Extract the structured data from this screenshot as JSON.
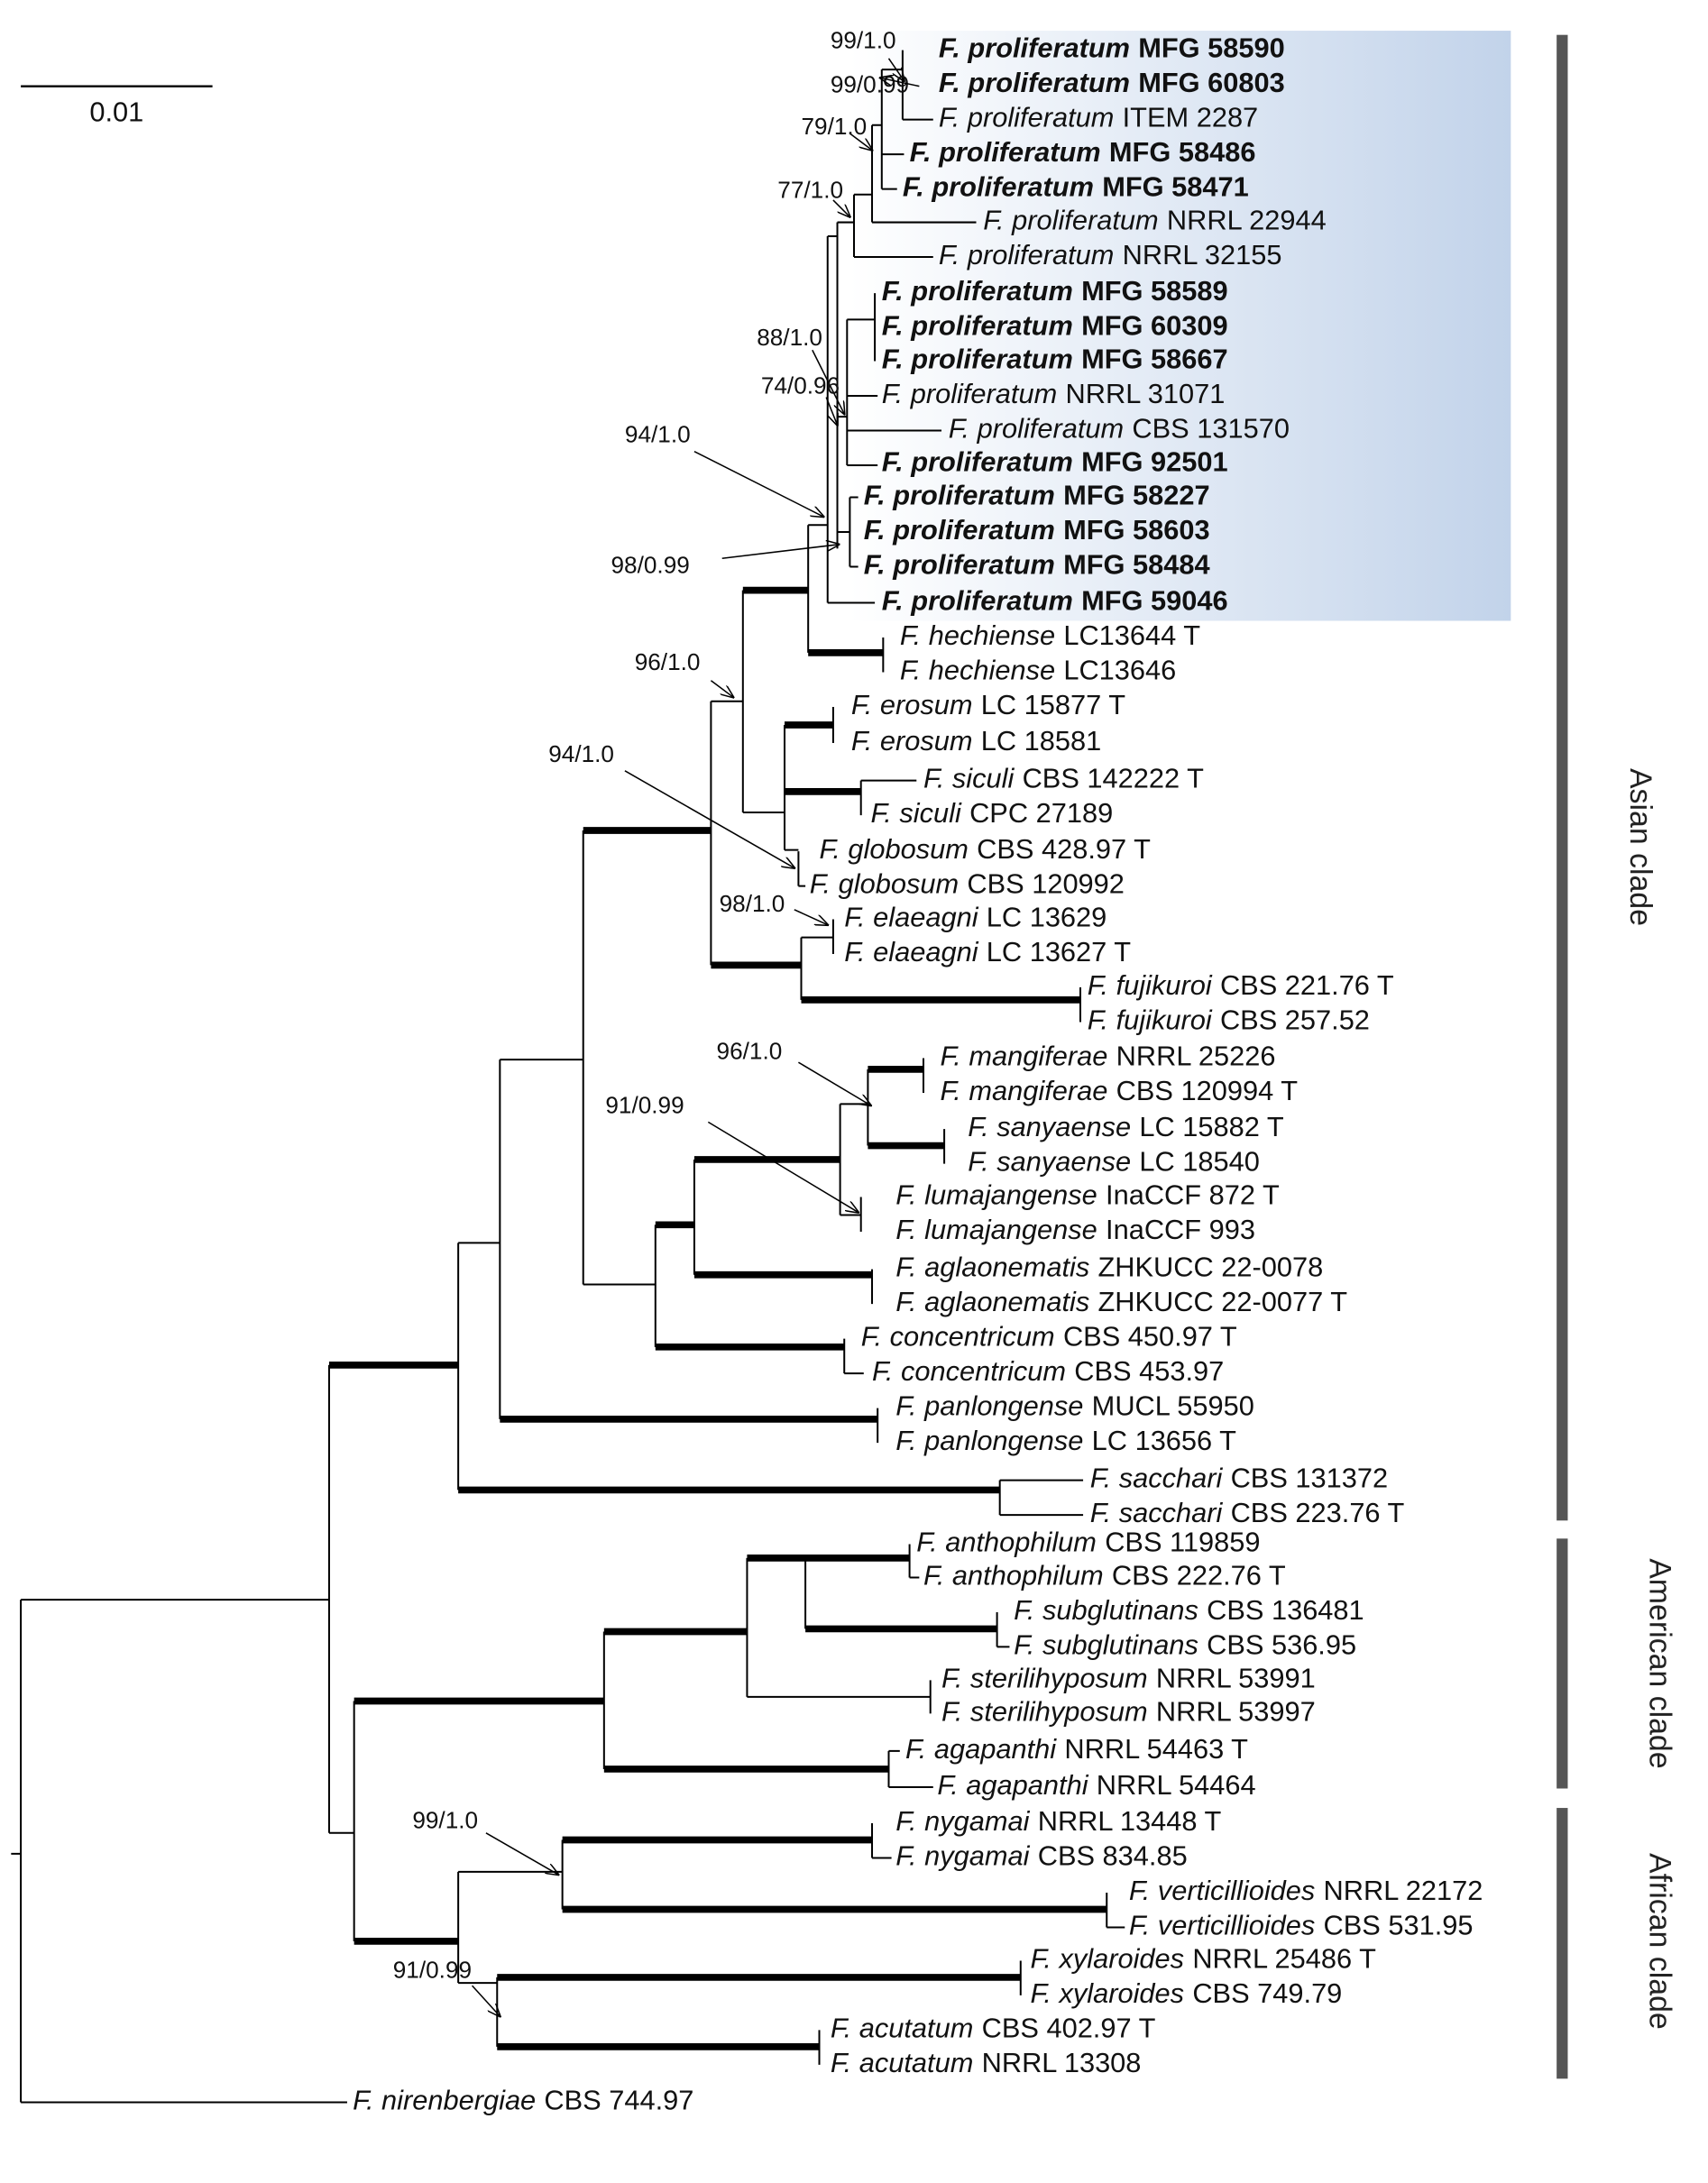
{
  "scale_bar": "0.01",
  "leaves": [
    {
      "species": "F. proliferatum",
      "strain": "MFG 58590",
      "bold": true
    },
    {
      "species": "F. proliferatum",
      "strain": "MFG 60803",
      "bold": true
    },
    {
      "species": "F. proliferatum",
      "strain": "ITEM 2287",
      "bold": false
    },
    {
      "species": "F. proliferatum",
      "strain": "MFG 58486",
      "bold": true
    },
    {
      "species": "F. proliferatum",
      "strain": "MFG 58471",
      "bold": true
    },
    {
      "species": "F. proliferatum",
      "strain": "NRRL 22944",
      "bold": false
    },
    {
      "species": "F. proliferatum",
      "strain": "NRRL 32155",
      "bold": false
    },
    {
      "species": "F. proliferatum",
      "strain": "MFG 58589",
      "bold": true
    },
    {
      "species": "F. proliferatum",
      "strain": "MFG 60309",
      "bold": true
    },
    {
      "species": "F. proliferatum",
      "strain": "MFG 58667",
      "bold": true
    },
    {
      "species": "F. proliferatum",
      "strain": "NRRL 31071",
      "bold": false
    },
    {
      "species": "F. proliferatum",
      "strain": "CBS 131570",
      "bold": false
    },
    {
      "species": "F. proliferatum",
      "strain": "MFG 92501",
      "bold": true
    },
    {
      "species": "F. proliferatum",
      "strain": "MFG 58227",
      "bold": true
    },
    {
      "species": "F. proliferatum",
      "strain": "MFG 58603",
      "bold": true
    },
    {
      "species": "F. proliferatum",
      "strain": "MFG 58484",
      "bold": true
    },
    {
      "species": "F. proliferatum",
      "strain": "MFG 59046",
      "bold": true
    },
    {
      "species": "F. hechiense",
      "strain": "LC13644 T",
      "bold": false
    },
    {
      "species": "F. hechiense",
      "strain": "LC13646",
      "bold": false
    },
    {
      "species": "F. erosum",
      "strain": "LC 15877 T",
      "bold": false
    },
    {
      "species": "F. erosum",
      "strain": "LC 18581",
      "bold": false
    },
    {
      "species": "F. siculi",
      "strain": "CBS 142222 T",
      "bold": false
    },
    {
      "species": "F. siculi",
      "strain": "CPC 27189",
      "bold": false
    },
    {
      "species": "F. globosum",
      "strain": "CBS 428.97 T",
      "bold": false
    },
    {
      "species": "F. globosum",
      "strain": "CBS 120992",
      "bold": false
    },
    {
      "species": "F. elaeagni",
      "strain": "LC 13629",
      "bold": false
    },
    {
      "species": "F. elaeagni",
      "strain": "LC 13627 T",
      "bold": false
    },
    {
      "species": "F. fujikuroi",
      "strain": "CBS 221.76 T",
      "bold": false
    },
    {
      "species": "F. fujikuroi",
      "strain": "CBS 257.52",
      "bold": false
    },
    {
      "species": "F. mangiferae",
      "strain": "NRRL 25226",
      "bold": false
    },
    {
      "species": "F. mangiferae",
      "strain": "CBS 120994 T",
      "bold": false
    },
    {
      "species": "F. sanyaense",
      "strain": "LC 15882 T",
      "bold": false
    },
    {
      "species": "F. sanyaense",
      "strain": "LC 18540",
      "bold": false
    },
    {
      "species": "F. lumajangense",
      "strain": "InaCCF 872 T",
      "bold": false
    },
    {
      "species": "F. lumajangense",
      "strain": "InaCCF 993",
      "bold": false
    },
    {
      "species": "F. aglaonematis",
      "strain": "ZHKUCC 22-0078",
      "bold": false
    },
    {
      "species": "F. aglaonematis",
      "strain": "ZHKUCC 22-0077 T",
      "bold": false
    },
    {
      "species": "F. concentricum",
      "strain": "CBS 450.97 T",
      "bold": false
    },
    {
      "species": "F. concentricum",
      "strain": "CBS 453.97",
      "bold": false
    },
    {
      "species": "F. panlongense",
      "strain": "MUCL 55950",
      "bold": false
    },
    {
      "species": "F. panlongense",
      "strain": "LC 13656 T",
      "bold": false
    },
    {
      "species": "F. sacchari",
      "strain": "CBS 131372",
      "bold": false
    },
    {
      "species": "F. sacchari",
      "strain": "CBS 223.76 T",
      "bold": false
    },
    {
      "species": "F. anthophilum",
      "strain": "CBS 119859",
      "bold": false
    },
    {
      "species": "F. anthophilum",
      "strain": "CBS 222.76 T",
      "bold": false
    },
    {
      "species": "F. subglutinans",
      "strain": "CBS 136481",
      "bold": false
    },
    {
      "species": "F. subglutinans",
      "strain": "CBS 536.95",
      "bold": false
    },
    {
      "species": "F. sterilihyposum",
      "strain": "NRRL 53991",
      "bold": false
    },
    {
      "species": "F. sterilihyposum",
      "strain": "NRRL 53997",
      "bold": false
    },
    {
      "species": "F. agapanthi",
      "strain": "NRRL 54463 T",
      "bold": false
    },
    {
      "species": "F. agapanthi",
      "strain": "NRRL 54464",
      "bold": false
    },
    {
      "species": "F. nygamai",
      "strain": "NRRL 13448 T",
      "bold": false
    },
    {
      "species": "F. nygamai",
      "strain": "CBS 834.85",
      "bold": false
    },
    {
      "species": "F. verticillioides",
      "strain": "NRRL 22172",
      "bold": false
    },
    {
      "species": "F. verticillioides",
      "strain": "CBS 531.95",
      "bold": false
    },
    {
      "species": "F. xylaroides",
      "strain": "NRRL 25486 T",
      "bold": false
    },
    {
      "species": "F. xylaroides",
      "strain": "CBS 749.79",
      "bold": false
    },
    {
      "species": "F. acutatum",
      "strain": "CBS 402.97 T",
      "bold": false
    },
    {
      "species": "F. acutatum",
      "strain": "NRRL 13308",
      "bold": false
    },
    {
      "species": "F. nirenbergiae",
      "strain": "CBS 744.97",
      "bold": false
    }
  ],
  "supports": [
    "99/1.0",
    "99/0.99",
    "79/1.0",
    "77/1.0",
    "88/1.0",
    "74/0.96",
    "94/1.0",
    "98/0.99",
    "96/1.0",
    "94/1.0",
    "98/1.0",
    "96/1.0",
    "91/0.99",
    "99/1.0",
    "91/0.99"
  ],
  "clades": [
    "Asian clade",
    "American clade",
    "African clade"
  ]
}
